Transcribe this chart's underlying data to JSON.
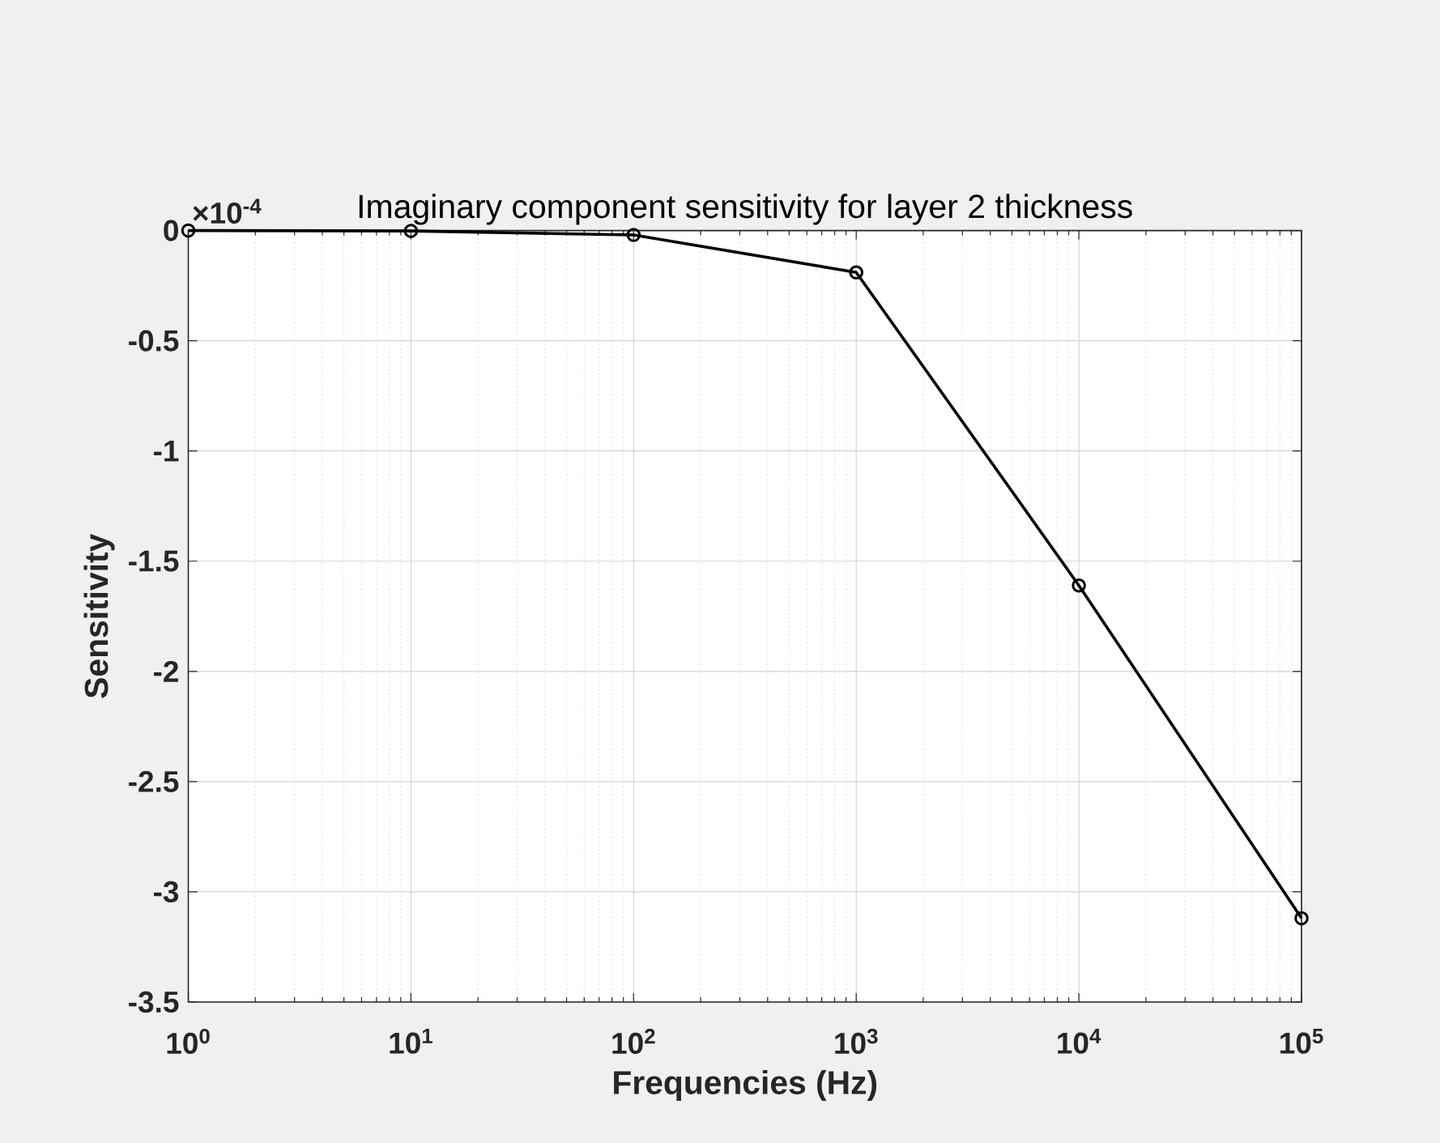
{
  "chart_data": {
    "type": "line",
    "title": "Imaginary component sensitivity for layer 2 thickness",
    "xlabel": "Frequencies (Hz)",
    "ylabel": "Sensitivity",
    "annotations": [
      "×10$^{-4}$"
    ],
    "x": [
      1,
      10,
      100,
      1000,
      10000,
      100000
    ],
    "values": [
      0,
      -0.002,
      -0.02,
      -0.19,
      -1.61,
      -3.12
    ],
    "color": "#000000",
    "xlim": [
      1,
      100000
    ],
    "ylim": [
      -3.5,
      0
    ],
    "xticks": [
      {
        "value": 1,
        "label": "10$^{0}$"
      },
      {
        "value": 10,
        "label": "10$^{1}$"
      },
      {
        "value": 100,
        "label": "10$^{2}$"
      },
      {
        "value": 1000,
        "label": "10$^{3}$"
      },
      {
        "value": 10000,
        "label": "10$^{4}$"
      },
      {
        "value": 100000,
        "label": "10$^{5}$"
      }
    ],
    "yticks": [
      -3.5,
      -3,
      -2.5,
      -2,
      -1.5,
      -1,
      -0.5,
      0
    ],
    "log": "x",
    "grid": true,
    "marker": "circle",
    "line_style": "solid"
  }
}
